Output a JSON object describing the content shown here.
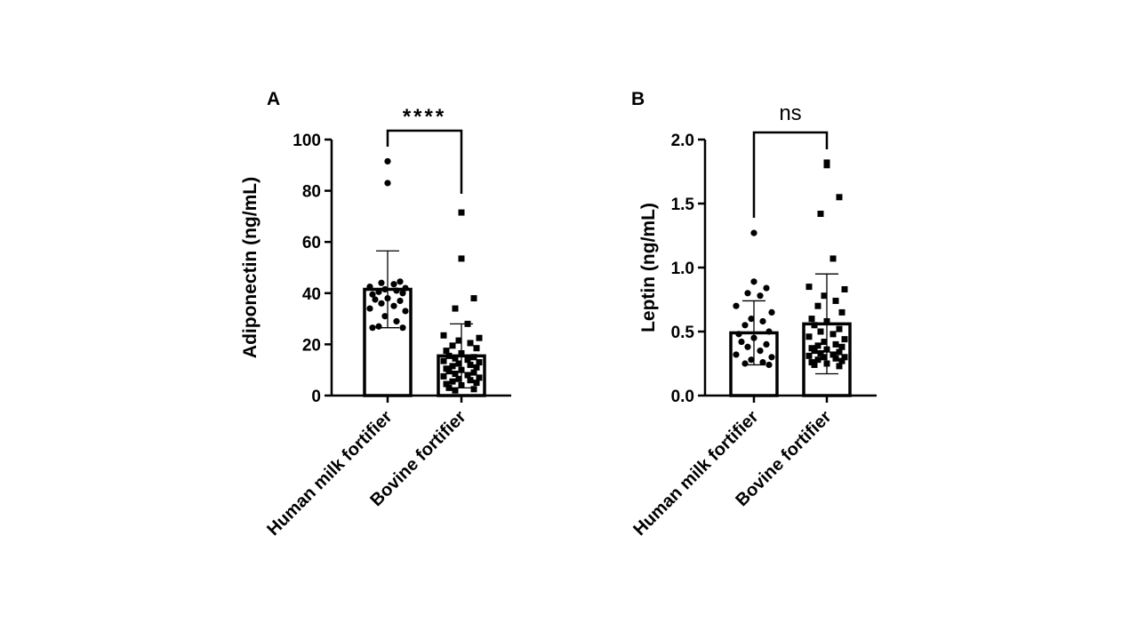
{
  "chart_data": [
    {
      "type": "bar",
      "panel_label": "A",
      "title": "",
      "ylabel": "Adiponectin (ng/mL)",
      "xlabel": "",
      "ylim": [
        0,
        100
      ],
      "yticks": [
        0,
        20,
        40,
        60,
        80,
        100
      ],
      "ytick_labels": [
        "0",
        "20",
        "40",
        "60",
        "80",
        "100"
      ],
      "categories": [
        "Human milk fortifier",
        "Bovine fortifier"
      ],
      "values": [
        41.5,
        15.5
      ],
      "error_upper": [
        56.5,
        28
      ],
      "error_lower": [
        26.5,
        3
      ],
      "points": [
        [
          91.5,
          83,
          44.5,
          44,
          43.5,
          42.5,
          42,
          41.5,
          41,
          40.5,
          40,
          39.5,
          38,
          37.5,
          37,
          36,
          35,
          34,
          33,
          31,
          29,
          27,
          26.5,
          26.5
        ],
        [
          71.5,
          53.5,
          38,
          34,
          28,
          23.5,
          22.5,
          21.5,
          20.5,
          19.5,
          18.5,
          17.5,
          16.5,
          15.5,
          15,
          14.5,
          14,
          13.5,
          13,
          12.5,
          12,
          11.5,
          11,
          10.5,
          10,
          9.5,
          9,
          8.5,
          8,
          7.5,
          7,
          6.5,
          6,
          5.5,
          5,
          4.5,
          4,
          3,
          2.5,
          2
        ]
      ],
      "marker_shapes": [
        "circle",
        "square"
      ],
      "significance": "****",
      "legend": "none",
      "grid": false
    },
    {
      "type": "bar",
      "panel_label": "B",
      "title": "",
      "ylabel": "Leptin (ng/mL)",
      "xlabel": "",
      "ylim": [
        0,
        2
      ],
      "yticks": [
        0,
        0.5,
        1,
        1.5,
        2
      ],
      "ytick_labels": [
        "0.0",
        "0.5",
        "1.0",
        "1.5",
        "2.0"
      ],
      "categories": [
        "Human milk fortifier",
        "Bovine fortifier"
      ],
      "values": [
        0.49,
        0.56
      ],
      "error_upper": [
        0.74,
        0.95
      ],
      "error_lower": [
        0.24,
        0.17
      ],
      "points": [
        [
          1.27,
          0.89,
          0.84,
          0.8,
          0.78,
          0.7,
          0.65,
          0.6,
          0.58,
          0.55,
          0.5,
          0.48,
          0.45,
          0.42,
          0.4,
          0.38,
          0.35,
          0.32,
          0.3,
          0.28,
          0.26,
          0.25,
          0.24
        ],
        [
          1.82,
          1.8,
          1.55,
          1.42,
          1.07,
          0.85,
          0.83,
          0.78,
          0.74,
          0.7,
          0.65,
          0.6,
          0.58,
          0.55,
          0.52,
          0.5,
          0.48,
          0.46,
          0.44,
          0.42,
          0.4,
          0.39,
          0.38,
          0.37,
          0.36,
          0.35,
          0.34,
          0.33,
          0.32,
          0.31,
          0.3,
          0.3,
          0.29,
          0.28,
          0.27,
          0.26,
          0.25,
          0.24,
          0.23
        ]
      ],
      "marker_shapes": [
        "circle",
        "square"
      ],
      "significance": "ns",
      "legend": "none",
      "grid": false
    }
  ]
}
